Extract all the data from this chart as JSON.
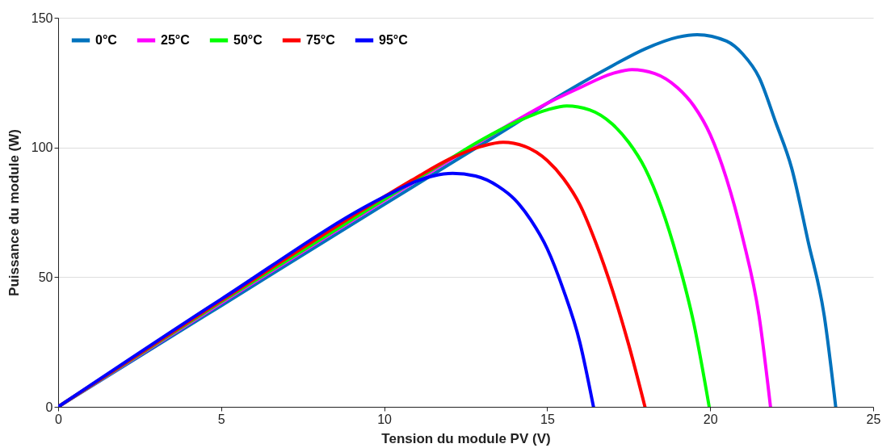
{
  "chart_data": {
    "type": "line",
    "xlabel": "Tension du module PV (V)",
    "ylabel": "Puissance du module (W)",
    "xlim": [
      0,
      25
    ],
    "ylim": [
      0,
      150
    ],
    "xticks": [
      0,
      5,
      10,
      15,
      20,
      25
    ],
    "yticks": [
      0,
      50,
      100,
      150
    ],
    "grid": "y",
    "legend": "top left",
    "line_style": "solid",
    "series": [
      {
        "name": "0°C",
        "color": "#0072bd",
        "x": [
          0,
          5,
          10,
          12,
          14,
          15,
          16,
          17,
          18,
          19,
          19.6,
          20.5,
          21,
          21.5,
          22,
          22.5,
          23,
          23.5,
          23.85
        ],
        "values": [
          0,
          39,
          78,
          93.5,
          109,
          117,
          124.5,
          131.5,
          138,
          142.5,
          143.5,
          141,
          136,
          127,
          110,
          92,
          64,
          35,
          0
        ]
      },
      {
        "name": "25°C",
        "color": "#ff00ff",
        "x": [
          0,
          5,
          10,
          12,
          14,
          15,
          16,
          17,
          17.6,
          18.3,
          19,
          19.5,
          20,
          20.5,
          21,
          21.5,
          21.85
        ],
        "values": [
          0,
          40,
          79.5,
          95,
          110,
          117,
          123,
          128.5,
          130,
          128.5,
          123,
          116,
          105,
          88,
          65,
          35,
          0
        ]
      },
      {
        "name": "50°C",
        "color": "#00ff00",
        "x": [
          0,
          5,
          10,
          12,
          13,
          14,
          15,
          15.6,
          16.3,
          17,
          17.5,
          18,
          18.5,
          19,
          19.5,
          19.97
        ],
        "values": [
          0,
          40.5,
          80,
          95.5,
          103,
          109.5,
          114.5,
          116,
          114.5,
          109,
          102,
          92,
          77,
          57,
          32,
          0
        ]
      },
      {
        "name": "75°C",
        "color": "#ff0000",
        "x": [
          0,
          5,
          10,
          11,
          12,
          13,
          13.65,
          14.3,
          15,
          15.5,
          16,
          16.5,
          17,
          17.5,
          18
        ],
        "values": [
          0,
          41,
          81,
          88.5,
          95.5,
          100.5,
          102,
          100.5,
          95,
          88,
          78,
          63,
          45,
          24,
          0
        ]
      },
      {
        "name": "95°C",
        "color": "#0000ff",
        "x": [
          0,
          5,
          10,
          11,
          11.5,
          12.1,
          12.8,
          13.5,
          14,
          14.5,
          15,
          15.5,
          16,
          16.42
        ],
        "values": [
          0,
          41.5,
          81,
          87,
          89,
          90,
          89,
          85,
          80,
          72,
          61,
          45,
          25,
          0
        ]
      }
    ]
  }
}
